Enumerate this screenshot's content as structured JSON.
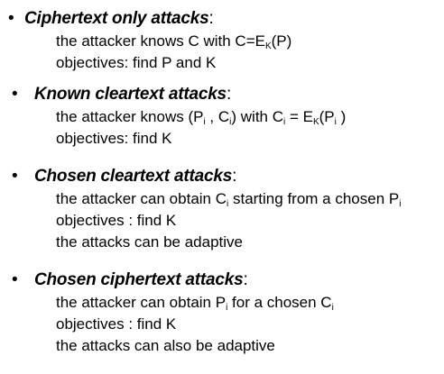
{
  "bullet_char": "•",
  "sections": [
    {
      "title": "Ciphertext only attacks",
      "colon": ":",
      "lines": [
        {
          "segments": [
            {
              "t": "the attacker knows C with C=E"
            },
            {
              "t": "K",
              "sub": true
            },
            {
              "t": "(P)"
            }
          ]
        },
        {
          "segments": [
            {
              "t": "objectives: find P and K"
            }
          ]
        }
      ]
    },
    {
      "title": "Known cleartext attacks",
      "colon": ":",
      "lines": [
        {
          "segments": [
            {
              "t": "the attacker knows (P"
            },
            {
              "t": "i",
              "sub": true
            },
            {
              "t": " , C"
            },
            {
              "t": "i",
              "sub": true
            },
            {
              "t": ") with C"
            },
            {
              "t": "i",
              "sub": true
            },
            {
              "t": " = E"
            },
            {
              "t": "K",
              "sub": true
            },
            {
              "t": "(P"
            },
            {
              "t": "i",
              "sub": true
            },
            {
              "t": " )"
            }
          ]
        },
        {
          "segments": [
            {
              "t": "objectives: find K"
            }
          ]
        }
      ]
    },
    {
      "title": "Chosen cleartext attacks",
      "colon": ":",
      "lines": [
        {
          "segments": [
            {
              "t": "the attacker can obtain C"
            },
            {
              "t": "i",
              "sub": true
            },
            {
              "t": " starting from a chosen P"
            },
            {
              "t": "i",
              "sub": true
            }
          ]
        },
        {
          "segments": [
            {
              "t": "objectives : find K"
            }
          ]
        },
        {
          "segments": [
            {
              "t": "the attacks can be adaptive"
            }
          ]
        }
      ]
    },
    {
      "title": "Chosen ciphertext attacks",
      "colon": ":",
      "lines": [
        {
          "segments": [
            {
              "t": "the attacker can obtain P"
            },
            {
              "t": "i",
              "sub": true
            },
            {
              "t": " for a chosen C"
            },
            {
              "t": "i",
              "sub": true
            }
          ]
        },
        {
          "segments": [
            {
              "t": "objectives : find K"
            }
          ]
        },
        {
          "segments": [
            {
              "t": "the attacks can also be adaptive"
            }
          ]
        }
      ]
    }
  ]
}
